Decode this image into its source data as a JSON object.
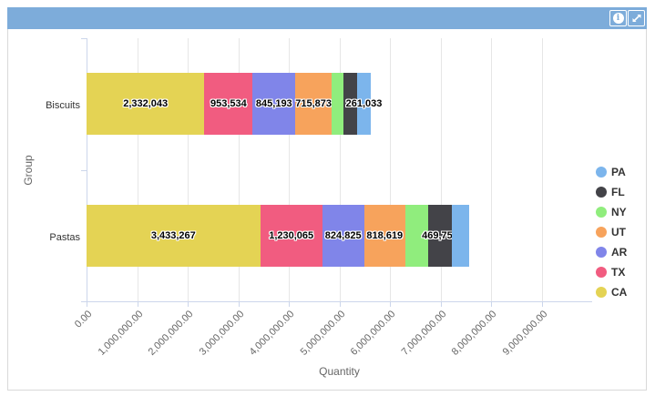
{
  "header": {
    "background_color": "#7DACDA",
    "icons": [
      "info-icon",
      "maximize-icon"
    ]
  },
  "chart_data": {
    "type": "bar",
    "orientation": "horizontal",
    "stacked": true,
    "title": "",
    "xlabel": "Quantity",
    "ylabel": "Group",
    "categories": [
      "Biscuits",
      "Pastas"
    ],
    "xlim": [
      0,
      10000000
    ],
    "x_tick_interval": 1000000,
    "x_tick_labels": [
      "0.00",
      "1,000,000.00",
      "2,000,000.00",
      "3,000,000.00",
      "4,000,000.00",
      "5,000,000.00",
      "6,000,000.00",
      "7,000,000.00",
      "8,000,000.00",
      "9,000,000.00"
    ],
    "grid": true,
    "legend_position": "right",
    "legend_order": [
      "PA",
      "FL",
      "NY",
      "UT",
      "AR",
      "TX",
      "CA"
    ],
    "series": [
      {
        "name": "CA",
        "color": "#e4d354",
        "values": [
          2332043,
          3433267
        ],
        "data_labels": [
          "2,332,043",
          "3,433,267"
        ]
      },
      {
        "name": "TX",
        "color": "#f15c80",
        "values": [
          953534,
          1230065
        ],
        "data_labels": [
          "953,534",
          "1,230,065"
        ]
      },
      {
        "name": "AR",
        "color": "#8085e9",
        "values": [
          845193,
          824825
        ],
        "data_labels": [
          "845,193",
          "824,825"
        ]
      },
      {
        "name": "UT",
        "color": "#f7a35c",
        "values": [
          715873,
          818619
        ],
        "data_labels": [
          "715,873",
          "818,619"
        ]
      },
      {
        "name": "NY",
        "color": "#90ed7d",
        "values": [
          240000,
          450000
        ],
        "data_labels": [
          null,
          null
        ]
      },
      {
        "name": "FL",
        "color": "#434348",
        "values": [
          270000,
          469756
        ],
        "data_labels": [
          null,
          "469,756"
        ]
      },
      {
        "name": "PA",
        "color": "#7cb5ec",
        "values": [
          261033,
          350000
        ],
        "data_labels": [
          "261,033",
          null
        ]
      }
    ],
    "style": {
      "axis_line_color": "#ccd6eb",
      "grid_line_color": "#e6e6e6",
      "tick_text_color": "#666666",
      "axis_title_color": "#666666",
      "category_text_color": "#333333",
      "legend_text_color": "#333333",
      "data_label_color": "#000000"
    }
  }
}
